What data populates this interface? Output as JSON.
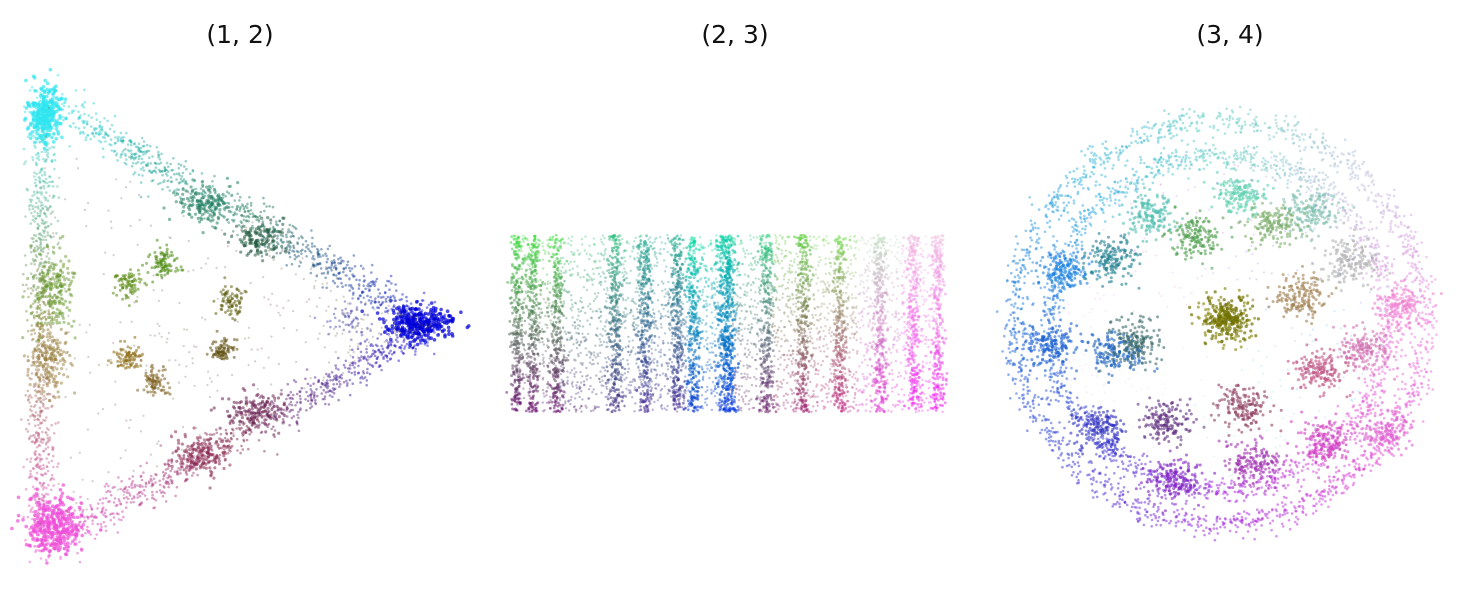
{
  "chart_data": [
    {
      "type": "scatter",
      "title": "(1, 2)",
      "shape": "triangle",
      "points": [],
      "clusters": [
        {
          "color": "#2fe6f0"
        },
        {
          "color": "#20806a"
        },
        {
          "color": "#0000d8"
        },
        {
          "color": "#7a2a60"
        },
        {
          "color": "#f050d8"
        },
        {
          "color": "#5a8a10"
        },
        {
          "color": "#807010"
        },
        {
          "color": "#606010"
        }
      ]
    },
    {
      "type": "scatter",
      "title": "(2, 3)",
      "shape": "rectangle",
      "points": [],
      "clusters": [
        {
          "color": "#40e040"
        },
        {
          "color": "#00c090"
        },
        {
          "color": "#0040c0"
        },
        {
          "color": "#6a1070"
        },
        {
          "color": "#f040e0"
        }
      ]
    },
    {
      "type": "scatter",
      "title": "(3, 4)",
      "shape": "disc",
      "points": [],
      "clusters": [
        {
          "color": "#808000"
        },
        {
          "color": "#306a70"
        },
        {
          "color": "#2060e0"
        },
        {
          "color": "#9020c0"
        },
        {
          "color": "#e050d0"
        },
        {
          "color": "#60c0a0"
        }
      ]
    }
  ]
}
